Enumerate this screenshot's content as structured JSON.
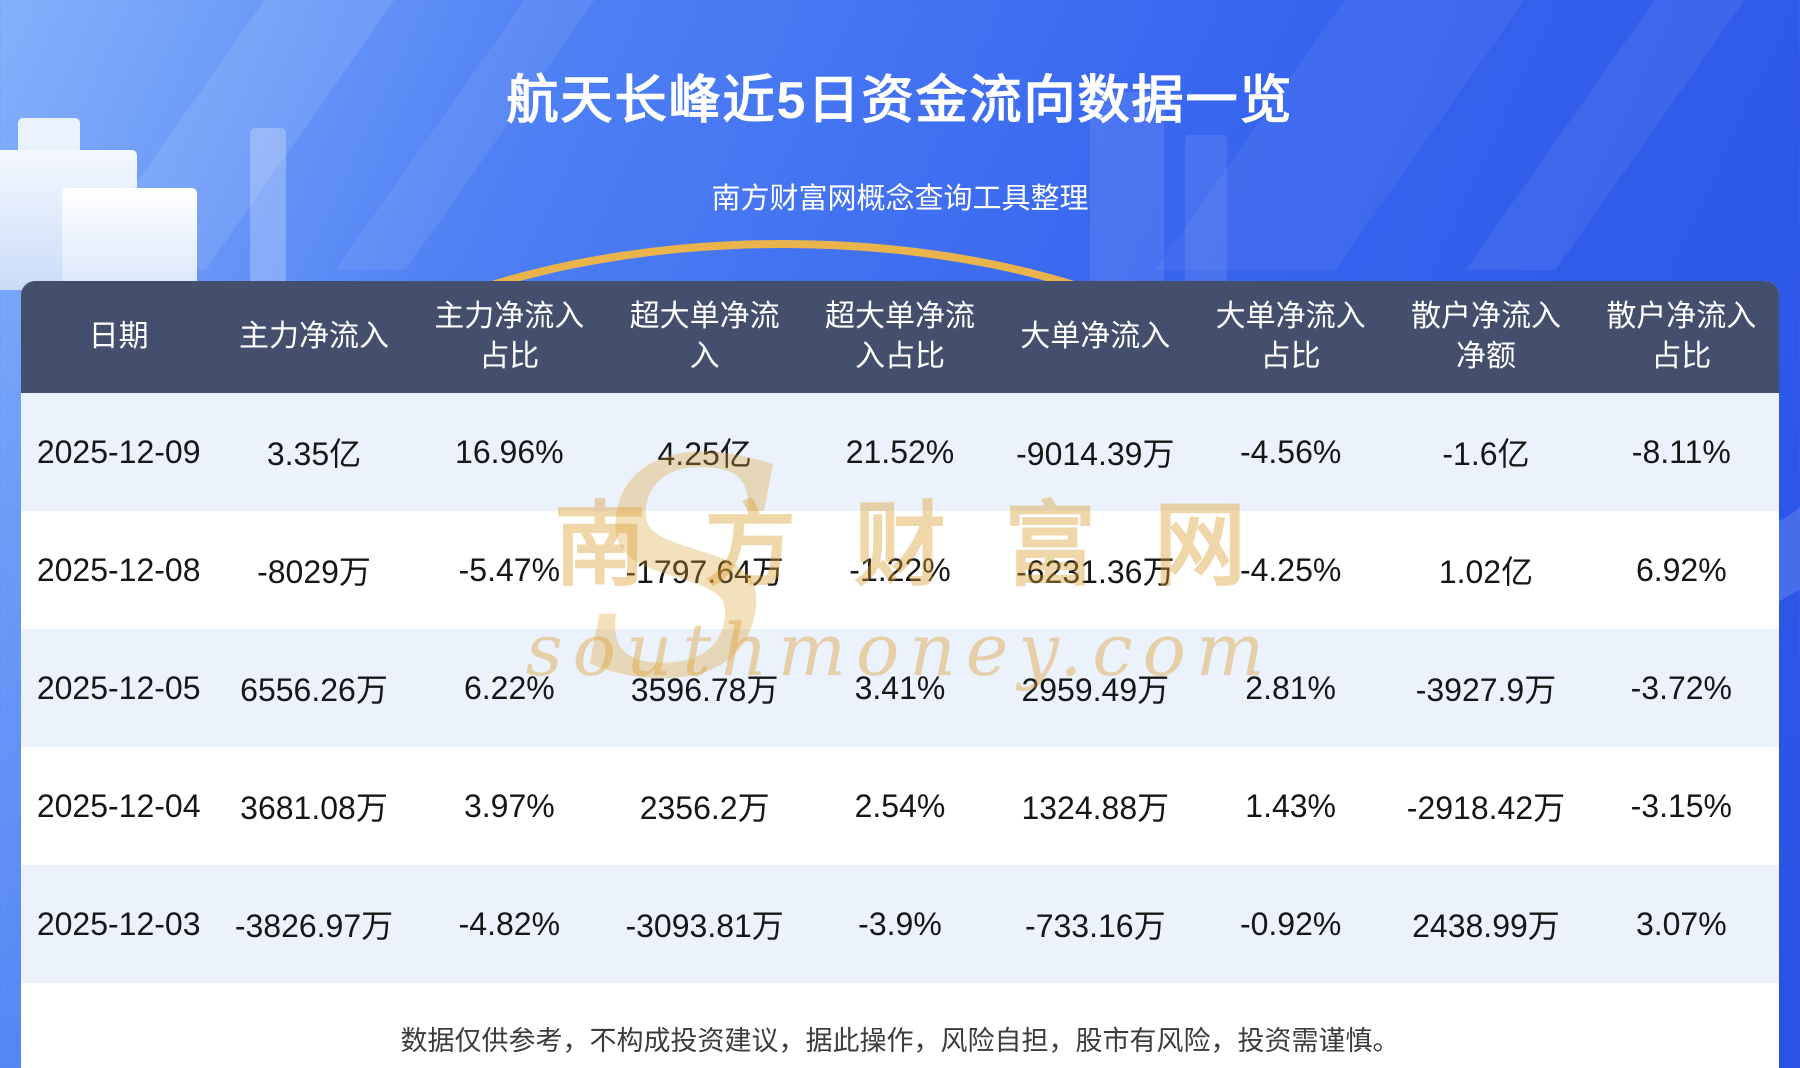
{
  "page": {
    "title": "航天长峰近5日资金流向数据一览",
    "subtitle": "南方财富网概念查询工具整理",
    "disclaimer": "数据仅供参考，不构成投资建议，据此操作，风险自担，股市有风险，投资需谨慎。",
    "watermark": {
      "cn": "南方财富网",
      "en": "southmoney.com",
      "logo_glyph": "S"
    }
  },
  "colors": {
    "background_top": "#85b2fa",
    "background_bottom": "#2a52e4",
    "header_row_bg": "#434f6d",
    "row_alt_bg": "#ecf2fb",
    "row_bg": "#ffffff",
    "accent_gold": "#e9b44c",
    "watermark_gold": "#dba034",
    "title_text": "#ffffff",
    "cell_text": "#161616",
    "disclaimer_text": "#3c3c3c"
  },
  "chart_data": {
    "type": "table",
    "title": "航天长峰近5日资金流向数据一览",
    "subtitle": "南方财富网概念查询工具整理",
    "columns": [
      "日期",
      "主力净流入",
      "主力净流入占比",
      "超大单净流入",
      "超大单净流入占比",
      "大单净流入",
      "大单净流入占比",
      "散户净流入净额",
      "散户净流入占比"
    ],
    "header_lines": [
      [
        "日期"
      ],
      [
        "主力净流入"
      ],
      [
        "主力净流入",
        "占比"
      ],
      [
        "超大单净流",
        "入"
      ],
      [
        "超大单净流",
        "入占比"
      ],
      [
        "大单净流入"
      ],
      [
        "大单净流入",
        "占比"
      ],
      [
        "散户净流入",
        "净额"
      ],
      [
        "散户净流入",
        "占比"
      ]
    ],
    "rows": [
      [
        "2025-12-09",
        "3.35亿",
        "16.96%",
        "4.25亿",
        "21.52%",
        "-9014.39万",
        "-4.56%",
        "-1.6亿",
        "-8.11%"
      ],
      [
        "2025-12-08",
        "-8029万",
        "-5.47%",
        "-1797.64万",
        "-1.22%",
        "-6231.36万",
        "-4.25%",
        "1.02亿",
        "6.92%"
      ],
      [
        "2025-12-05",
        "6556.26万",
        "6.22%",
        "3596.78万",
        "3.41%",
        "2959.49万",
        "2.81%",
        "-3927.9万",
        "-3.72%"
      ],
      [
        "2025-12-04",
        "3681.08万",
        "3.97%",
        "2356.2万",
        "2.54%",
        "1324.88万",
        "1.43%",
        "-2918.42万",
        "-3.15%"
      ],
      [
        "2025-12-03",
        "-3826.97万",
        "-4.82%",
        "-3093.81万",
        "-3.9%",
        "-733.16万",
        "-0.92%",
        "2438.99万",
        "3.07%"
      ]
    ]
  }
}
